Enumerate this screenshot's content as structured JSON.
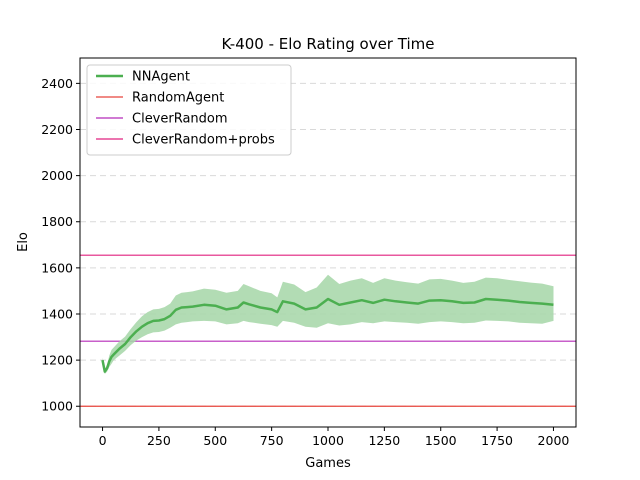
{
  "chart_data": {
    "type": "line",
    "title": "K-400 - Elo Rating over Time",
    "xlabel": "Games",
    "ylabel": "Elo",
    "xlim": [
      -100,
      2100
    ],
    "ylim": [
      910,
      2510
    ],
    "xticks": [
      0,
      250,
      500,
      750,
      1000,
      1250,
      1500,
      1750,
      2000
    ],
    "yticks": [
      1000,
      1200,
      1400,
      1600,
      1800,
      2000,
      2200,
      2400
    ],
    "grid": "horizontal dashed",
    "legend_position": "top-left",
    "reference_lines": [
      {
        "name": "RandomAgent",
        "value": 1000,
        "color": "#e8453c"
      },
      {
        "name": "CleverRandom",
        "value": 1282,
        "color": "#b52ab9"
      },
      {
        "name": "CleverRandom+probs",
        "value": 1655,
        "color": "#e0207f"
      }
    ],
    "series": [
      {
        "name": "NNAgent",
        "color": "#4caf50",
        "band_color": "#a5d6a7",
        "x": [
          0,
          10,
          20,
          30,
          40,
          50,
          75,
          100,
          125,
          150,
          175,
          200,
          225,
          250,
          275,
          300,
          325,
          350,
          375,
          400,
          450,
          500,
          550,
          600,
          625,
          650,
          700,
          750,
          775,
          800,
          850,
          900,
          950,
          1000,
          1050,
          1100,
          1150,
          1200,
          1250,
          1300,
          1350,
          1400,
          1450,
          1500,
          1550,
          1600,
          1650,
          1700,
          1750,
          1800,
          1850,
          1900,
          1950,
          2000
        ],
        "y": [
          1200,
          1150,
          1165,
          1195,
          1215,
          1225,
          1250,
          1270,
          1300,
          1325,
          1345,
          1360,
          1370,
          1372,
          1378,
          1392,
          1418,
          1428,
          1430,
          1432,
          1440,
          1436,
          1420,
          1428,
          1450,
          1442,
          1428,
          1420,
          1408,
          1455,
          1445,
          1420,
          1428,
          1465,
          1440,
          1450,
          1460,
          1448,
          1462,
          1455,
          1450,
          1445,
          1458,
          1460,
          1455,
          1448,
          1450,
          1465,
          1462,
          1458,
          1452,
          1448,
          1445,
          1440
        ],
        "band_lower": [
          1185,
          1140,
          1150,
          1170,
          1185,
          1200,
          1220,
          1240,
          1265,
          1285,
          1300,
          1312,
          1320,
          1322,
          1328,
          1340,
          1355,
          1362,
          1365,
          1368,
          1370,
          1368,
          1355,
          1360,
          1370,
          1365,
          1358,
          1352,
          1345,
          1370,
          1362,
          1345,
          1340,
          1360,
          1350,
          1355,
          1365,
          1360,
          1368,
          1365,
          1362,
          1358,
          1365,
          1368,
          1365,
          1360,
          1362,
          1372,
          1370,
          1368,
          1362,
          1360,
          1358,
          1370
        ],
        "band_upper": [
          1210,
          1160,
          1180,
          1220,
          1245,
          1255,
          1282,
          1302,
          1335,
          1365,
          1390,
          1408,
          1420,
          1422,
          1430,
          1445,
          1480,
          1492,
          1495,
          1498,
          1510,
          1505,
          1492,
          1500,
          1530,
          1520,
          1500,
          1490,
          1472,
          1540,
          1528,
          1495,
          1515,
          1570,
          1530,
          1545,
          1555,
          1535,
          1555,
          1545,
          1538,
          1532,
          1550,
          1552,
          1545,
          1535,
          1540,
          1558,
          1555,
          1548,
          1542,
          1536,
          1532,
          1520
        ]
      }
    ]
  }
}
